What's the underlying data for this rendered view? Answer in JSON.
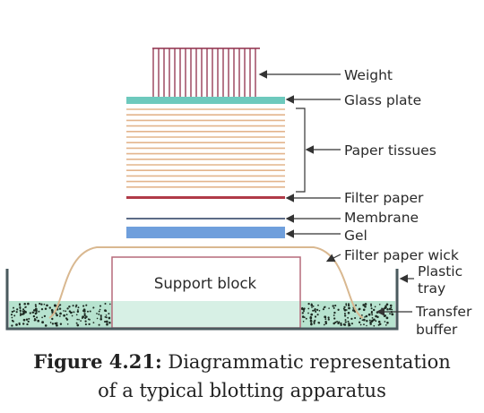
{
  "labels": {
    "weight": "Weight",
    "glass_plate": "Glass plate",
    "paper_tissues": "Paper tissues",
    "filter_paper": "Filter paper",
    "membrane": "Membrane",
    "gel": "Gel",
    "filter_paper_wick": "Filter paper wick",
    "plastic_tray_line1": "Plastic",
    "plastic_tray_line2": "tray",
    "transfer_buffer_line1": "Transfer",
    "transfer_buffer_line2": "buffer",
    "support_block": "Support block"
  },
  "caption": {
    "figure_number": "Figure 4.21:",
    "line1_rest": " Diagrammatic representation",
    "line2": "of a typical blotting apparatus"
  },
  "colors": {
    "weight": "#8e2f4a",
    "glass_plate": "#6dc9bd",
    "paper_tissues": "#e3b58c",
    "filter_paper": "#b03a48",
    "membrane": "#5c6b86",
    "gel": "#6f9fdc",
    "wick": "#d9b890",
    "support_block": "#b56a7a",
    "buffer": "#b7e3cf",
    "buffer_dots": "#1d2a22",
    "tray": "#4a5a5e",
    "arrow": "#333333"
  }
}
